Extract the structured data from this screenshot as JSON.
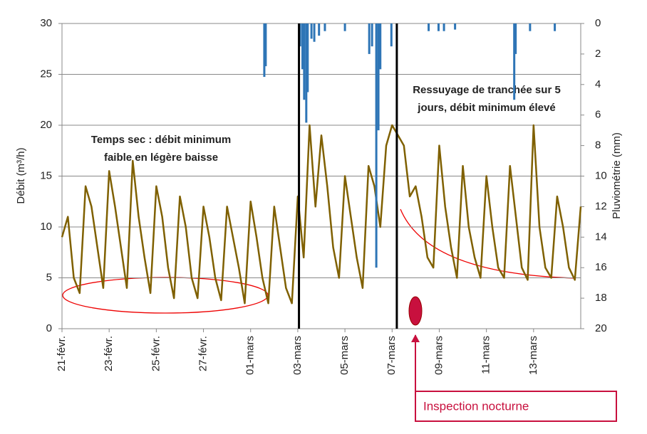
{
  "chart_data": {
    "type": "line",
    "y_label": "Débit (m³/h)",
    "y2_label": "Pluviométrie (mm)",
    "xlim": [
      0,
      22
    ],
    "xticks": [
      {
        "value": 0,
        "label": "21-févr."
      },
      {
        "value": 2,
        "label": "23-févr."
      },
      {
        "value": 4,
        "label": "25-févr."
      },
      {
        "value": 6,
        "label": "27-févr."
      },
      {
        "value": 8,
        "label": "01-mars"
      },
      {
        "value": 10,
        "label": "03-mars"
      },
      {
        "value": 12,
        "label": "05-mars"
      },
      {
        "value": 14,
        "label": "07-mars"
      },
      {
        "value": 16,
        "label": "09-mars"
      },
      {
        "value": 18,
        "label": "11-mars"
      },
      {
        "value": 20,
        "label": "13-mars"
      }
    ],
    "ylim": [
      0,
      30
    ],
    "yticks": [
      0,
      5,
      10,
      15,
      20,
      25,
      30
    ],
    "y2lim": [
      0,
      20
    ],
    "y2ticks": [
      0,
      2,
      4,
      6,
      8,
      10,
      12,
      14,
      16,
      18,
      20
    ],
    "y2_inverted": true,
    "grid": true,
    "x": [
      0,
      0.25,
      0.5,
      0.75,
      1,
      1.25,
      1.5,
      1.75,
      2,
      2.25,
      2.5,
      2.75,
      3,
      3.25,
      3.5,
      3.75,
      4,
      4.25,
      4.5,
      4.75,
      5,
      5.25,
      5.5,
      5.75,
      6,
      6.25,
      6.5,
      6.75,
      7,
      7.25,
      7.5,
      7.75,
      8,
      8.25,
      8.5,
      8.75,
      9,
      9.25,
      9.5,
      9.75,
      10,
      10.25,
      10.5,
      10.75,
      11,
      11.25,
      11.5,
      11.75,
      12,
      12.25,
      12.5,
      12.75,
      13,
      13.25,
      13.5,
      13.75,
      14,
      14.25,
      14.5,
      14.75,
      15,
      15.25,
      15.5,
      15.75,
      16,
      16.25,
      16.5,
      16.75,
      17,
      17.25,
      17.5,
      17.75,
      18,
      18.25,
      18.5,
      18.75,
      19,
      19.25,
      19.5,
      19.75,
      20,
      20.25,
      20.5,
      20.75,
      21,
      21.25,
      21.5,
      21.75,
      22
    ],
    "series": [
      {
        "name": "Débit",
        "color": "#7f6000",
        "values": [
          9,
          11,
          5,
          3.5,
          14,
          12,
          8,
          4,
          15.5,
          12,
          8,
          4,
          16.5,
          11,
          7,
          3.5,
          14,
          11,
          6,
          3,
          13,
          10,
          5,
          3,
          12,
          9,
          5,
          2.8,
          12,
          9,
          6,
          2.5,
          12.5,
          9,
          5,
          2.5,
          12,
          8,
          4,
          2.5,
          13,
          7,
          20,
          12,
          19,
          14,
          8,
          5,
          15,
          11,
          7,
          4,
          16,
          14,
          10,
          18,
          20,
          19,
          18,
          13,
          14,
          11,
          7,
          6,
          18,
          12,
          8,
          5,
          16,
          10,
          7,
          5,
          15,
          10,
          6,
          5,
          16,
          11,
          6,
          4.8,
          20,
          10,
          6,
          5,
          13,
          10,
          6,
          4.8,
          12
        ]
      },
      {
        "name": "Pluie",
        "type": "bar",
        "axis": "y2",
        "color": "#2e75b6",
        "x": [
          8.58,
          8.64,
          10.1,
          10.2,
          10.27,
          10.36,
          10.42,
          10.58,
          10.7,
          10.9,
          11.15,
          12,
          13.03,
          13.15,
          13.33,
          13.42,
          13.5,
          13.97,
          15.55,
          15.97,
          16.2,
          16.67,
          19.18,
          19.24,
          19.85,
          20.9
        ],
        "values": [
          3.5,
          2.8,
          1.5,
          3,
          5,
          6.5,
          4.5,
          1,
          1.2,
          0.8,
          0.5,
          0.5,
          2,
          1.5,
          16,
          7,
          3,
          1.5,
          0.5,
          0.5,
          0.5,
          0.4,
          5,
          2,
          0.5,
          0.5
        ]
      }
    ],
    "vlines": [
      10.05,
      14.2
    ],
    "annotations": [
      {
        "lines": [
          "Temps sec : débit minimum",
          "faible en légère baisse"
        ]
      },
      {
        "lines": [
          "Ressuyage de tranchée sur 5",
          "jours, débit minimum élevé"
        ]
      },
      {
        "lines": [
          "Inspection nocturne"
        ]
      }
    ]
  }
}
